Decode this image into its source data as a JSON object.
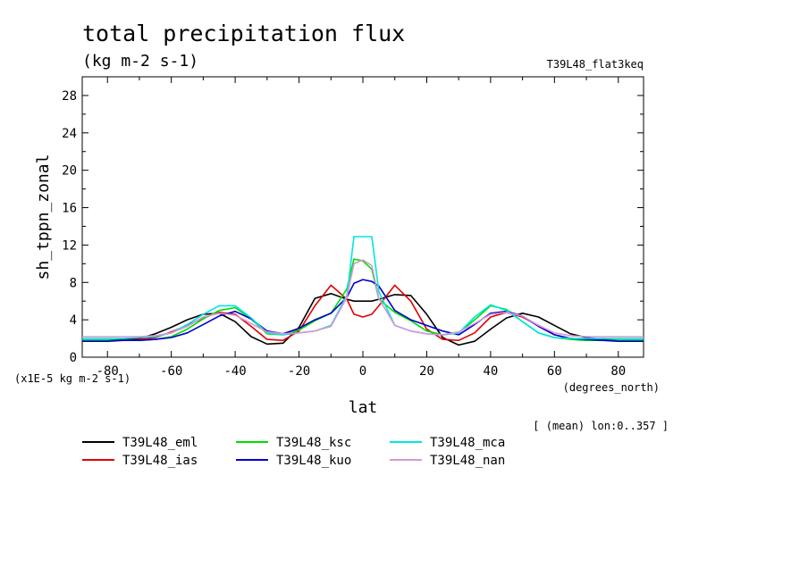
{
  "chart_data": {
    "type": "line",
    "title": "total precipitation flux",
    "subtitle": "(kg m-2 s-1)",
    "experiment": "T39L48_flat3keq",
    "xlabel": "lat",
    "xunits": "(degrees_north)",
    "ylabel": "sh_tppn_zonal",
    "yscale_label": "(x1E-5 kg m-2 s-1)",
    "note": "[ (mean) lon:0..357 ]",
    "xlim": [
      -87.9,
      87.9
    ],
    "ylim": [
      0,
      30
    ],
    "xticks": [
      -80,
      -60,
      -40,
      -20,
      0,
      20,
      40,
      60,
      80
    ],
    "yticks": [
      0,
      4,
      8,
      12,
      16,
      20,
      24,
      28
    ],
    "grid": false,
    "legend_position": "bottom",
    "x": [
      -87.9,
      -85,
      -80,
      -75,
      -70,
      -65,
      -60,
      -55,
      -50,
      -45,
      -40,
      -35,
      -30,
      -25,
      -20,
      -15,
      -10,
      -5,
      -2.8,
      0,
      2.8,
      5,
      10,
      15,
      20,
      25,
      30,
      35,
      40,
      45,
      50,
      55,
      60,
      65,
      70,
      75,
      80,
      85,
      87.9
    ],
    "series": [
      {
        "name": "T39L48_eml",
        "color": "#000000",
        "values": [
          1.8,
          1.8,
          1.8,
          1.9,
          2.0,
          2.5,
          3.2,
          4.0,
          4.6,
          4.7,
          3.8,
          2.2,
          1.4,
          1.5,
          3.2,
          6.3,
          6.8,
          6.2,
          6.0,
          6.0,
          6.0,
          6.2,
          6.7,
          6.6,
          4.6,
          2.1,
          1.3,
          1.7,
          3.0,
          4.2,
          4.7,
          4.3,
          3.4,
          2.5,
          2.1,
          1.9,
          1.8,
          1.8,
          1.8
        ]
      },
      {
        "name": "T39L48_ias",
        "color": "#e00000",
        "values": [
          1.8,
          1.8,
          1.8,
          1.8,
          1.9,
          2.1,
          2.7,
          3.4,
          4.2,
          4.8,
          4.6,
          3.3,
          1.9,
          1.8,
          2.8,
          5.5,
          7.7,
          6.2,
          4.6,
          4.3,
          4.6,
          5.5,
          7.7,
          6.0,
          3.0,
          1.9,
          1.8,
          2.6,
          4.3,
          4.8,
          4.3,
          3.4,
          2.4,
          2.0,
          1.9,
          1.8,
          1.8,
          1.8,
          1.8
        ]
      },
      {
        "name": "T39L48_ksc",
        "color": "#00dd00",
        "values": [
          1.8,
          1.8,
          1.8,
          1.8,
          1.8,
          1.9,
          2.2,
          3.0,
          4.1,
          5.0,
          5.3,
          4.1,
          2.5,
          2.4,
          2.9,
          3.9,
          4.7,
          7.3,
          10.5,
          10.3,
          9.4,
          6.2,
          4.8,
          3.9,
          2.8,
          2.4,
          2.6,
          4.0,
          5.5,
          5.1,
          3.8,
          2.6,
          2.1,
          1.9,
          1.8,
          1.8,
          1.8,
          1.8,
          1.8
        ]
      },
      {
        "name": "T39L48_kuo",
        "color": "#0000cc",
        "values": [
          1.7,
          1.7,
          1.7,
          1.8,
          1.8,
          1.9,
          2.1,
          2.6,
          3.5,
          4.4,
          4.9,
          4.1,
          2.8,
          2.5,
          3.1,
          4.0,
          4.7,
          6.4,
          7.9,
          8.3,
          8.1,
          7.6,
          5.0,
          4.0,
          3.4,
          2.8,
          2.4,
          3.5,
          4.7,
          4.9,
          4.4,
          3.3,
          2.4,
          2.0,
          1.9,
          1.8,
          1.7,
          1.7,
          1.7
        ]
      },
      {
        "name": "T39L48_mca",
        "color": "#00e5e5",
        "values": [
          2.0,
          2.0,
          2.0,
          2.0,
          2.1,
          2.2,
          2.6,
          3.5,
          4.6,
          5.5,
          5.5,
          4.2,
          2.6,
          2.4,
          2.6,
          2.8,
          3.4,
          6.6,
          12.9,
          12.9,
          12.9,
          7.0,
          3.4,
          2.8,
          2.5,
          2.4,
          2.6,
          4.3,
          5.6,
          5.0,
          3.8,
          2.6,
          2.1,
          2.0,
          2.0,
          2.0,
          2.0,
          2.0,
          2.0
        ]
      },
      {
        "name": "T39L48_nan",
        "color": "#d896d8",
        "values": [
          2.2,
          2.2,
          2.2,
          2.2,
          2.2,
          2.3,
          2.6,
          3.3,
          4.3,
          4.7,
          4.5,
          3.6,
          2.7,
          2.5,
          2.6,
          2.8,
          3.3,
          6.4,
          10.0,
          10.4,
          9.8,
          6.3,
          3.4,
          2.8,
          2.5,
          2.4,
          2.7,
          3.6,
          4.6,
          4.8,
          4.4,
          3.4,
          2.6,
          2.3,
          2.2,
          2.2,
          2.2,
          2.2,
          2.2
        ]
      }
    ]
  }
}
